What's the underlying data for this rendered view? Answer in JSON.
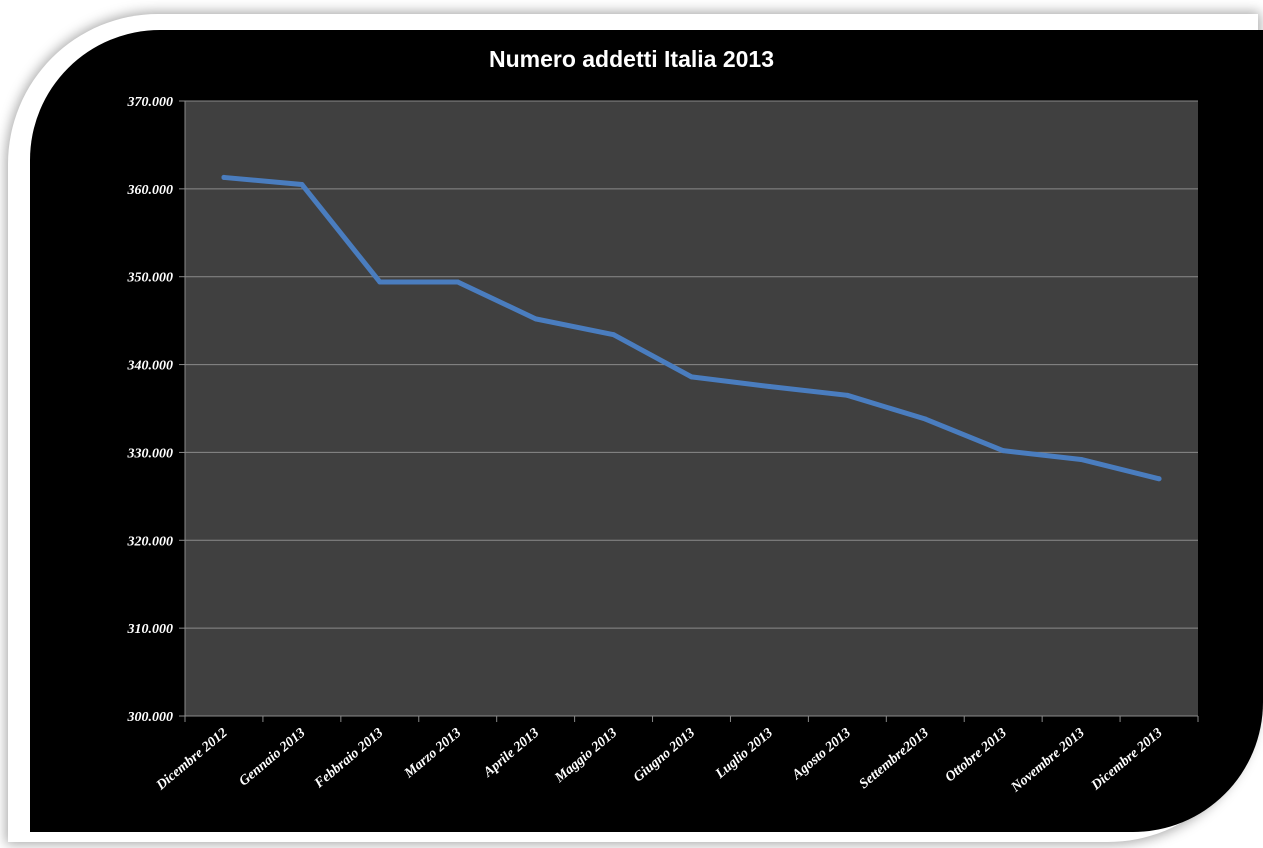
{
  "chart_data": {
    "type": "line",
    "title": "Numero addetti Italia 2013",
    "categories": [
      "Dicembre 2012",
      "Gennaio 2013",
      "Febbraio 2013",
      "Marzo 2013",
      "Aprile 2013",
      "Maggio 2013",
      "Giugno 2013",
      "Luglio 2013",
      "Agosto 2013",
      "Settembre2013",
      "Ottobre 2013",
      "Novembre 2013",
      "Dicembre 2013"
    ],
    "series": [
      {
        "values": [
          361300,
          360500,
          349400,
          349400,
          345200,
          343400,
          338600,
          337500,
          336500,
          333800,
          330200,
          329200,
          327000
        ],
        "color": "#4a7dbf"
      }
    ],
    "yticks": [
      "300.000",
      "310.000",
      "320.000",
      "330.000",
      "340.000",
      "350.000",
      "360.000",
      "370.000"
    ],
    "ylim": [
      300000,
      370000
    ],
    "grid": true,
    "plot_background": "#404040",
    "background": "#000000"
  }
}
